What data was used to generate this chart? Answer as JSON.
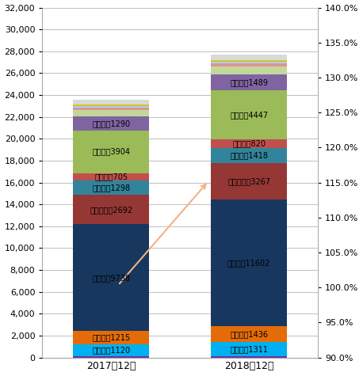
{
  "categories": [
    "2017年12月",
    "2018年12月"
  ],
  "segs_2017": [
    [
      "bottom_other",
      100,
      "#7030a0"
    ],
    [
      "埼玉県",
      1120,
      "#00b0f0"
    ],
    [
      "千葉県",
      1215,
      "#e36c09"
    ],
    [
      "東京都",
      9738,
      "#17375e"
    ],
    [
      "神奈川県",
      2692,
      "#953735"
    ],
    [
      "愛知県",
      1298,
      "#31849b"
    ],
    [
      "京都府",
      705,
      "#c0504d"
    ],
    [
      "大阪府",
      3904,
      "#9bbb59"
    ],
    [
      "兵庫県",
      1290,
      "#8064a2"
    ],
    [
      "top_other1",
      600,
      "#c4d79b"
    ],
    [
      "top_other2",
      200,
      "#da9694"
    ],
    [
      "top_other3",
      130,
      "#b8cce4"
    ],
    [
      "top_other4",
      80,
      "#92d050"
    ],
    [
      "top_other5",
      50,
      "#ffc000"
    ],
    [
      "top_other6",
      417,
      "#d9d9d9"
    ]
  ],
  "segs_2018": [
    [
      "bottom_other",
      130,
      "#7030a0"
    ],
    [
      "埼玉県",
      1311,
      "#00b0f0"
    ],
    [
      "千葉県",
      1436,
      "#e36c09"
    ],
    [
      "東京都",
      11602,
      "#17375e"
    ],
    [
      "神奈川県",
      3267,
      "#953735"
    ],
    [
      "愛知県",
      1418,
      "#31849b"
    ],
    [
      "京都府",
      820,
      "#c0504d"
    ],
    [
      "大阪府",
      4447,
      "#9bbb59"
    ],
    [
      "兵庫県",
      1489,
      "#8064a2"
    ],
    [
      "top_other1",
      700,
      "#c4d79b"
    ],
    [
      "top_other2",
      250,
      "#da9694"
    ],
    [
      "top_other3",
      160,
      "#b8cce4"
    ],
    [
      "top_other4",
      100,
      "#92d050"
    ],
    [
      "top_other5",
      60,
      "#ffc000"
    ],
    [
      "top_other6",
      500,
      "#d9d9d9"
    ]
  ],
  "show_labels_2017": [
    "埼玉県",
    "千葉県",
    "東京都",
    "神奈川県",
    "愛知県",
    "京都府",
    "大阪府",
    "兵庫県"
  ],
  "vals_2017": {
    "埼玉県": 1120,
    "千葉県": 1215,
    "東京都": 9738,
    "神奈川県": 2692,
    "愛知県": 1298,
    "京都府": 705,
    "大阪府": 3904,
    "兵庫県": 1290
  },
  "vals_2018": {
    "埼玉県": 1311,
    "千葉県": 1436,
    "東京都": 11602,
    "神奈川県": 3267,
    "愛知県": 1418,
    "京都府": 820,
    "大阪府": 4447,
    "兵庫県": 1489
  },
  "ylim_left": [
    0,
    32000
  ],
  "ylim_right": [
    0.9,
    1.4
  ],
  "yticks_left": [
    0,
    2000,
    4000,
    6000,
    8000,
    10000,
    12000,
    14000,
    16000,
    18000,
    20000,
    22000,
    24000,
    26000,
    28000,
    30000,
    32000
  ],
  "yticks_right": [
    0.9,
    0.95,
    1.0,
    1.05,
    1.1,
    1.15,
    1.2,
    1.25,
    1.3,
    1.35,
    1.4
  ],
  "bar_width": 0.55,
  "arrow_color": "#f4b183",
  "background_color": "#ffffff",
  "grid_color": "#bfbfbf"
}
